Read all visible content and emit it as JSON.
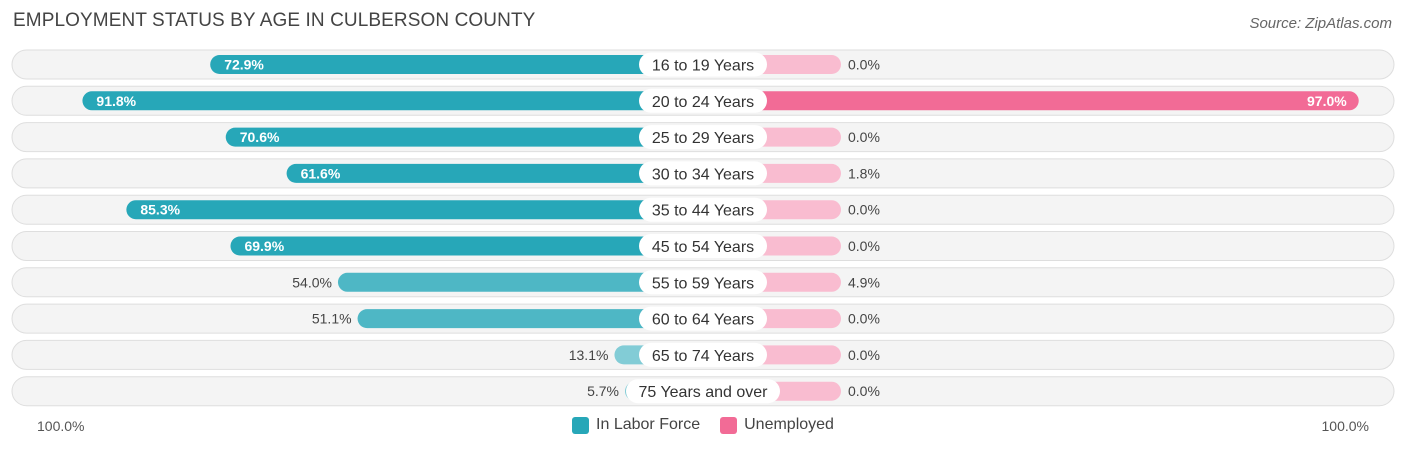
{
  "title": "EMPLOYMENT STATUS BY AGE IN CULBERSON COUNTY",
  "source": "Source: ZipAtlas.com",
  "axis": {
    "left_label": "100.0%",
    "right_label": "100.0%"
  },
  "legend": [
    {
      "label": "In Labor Force",
      "color": "#27a7b8"
    },
    {
      "label": "Unemployed",
      "color": "#f26b96"
    }
  ],
  "chart_data": {
    "type": "bar",
    "orientation": "horizontal-diverging",
    "title": "EMPLOYMENT STATUS BY AGE IN CULBERSON COUNTY",
    "categories": [
      "16 to 19 Years",
      "20 to 24 Years",
      "25 to 29 Years",
      "30 to 34 Years",
      "35 to 44 Years",
      "45 to 54 Years",
      "55 to 59 Years",
      "60 to 64 Years",
      "65 to 74 Years",
      "75 Years and over"
    ],
    "xlim": [
      0,
      100
    ],
    "series": [
      {
        "name": "In Labor Force",
        "side": "left",
        "values": [
          72.9,
          91.8,
          70.6,
          61.6,
          85.3,
          69.9,
          54.0,
          51.1,
          13.1,
          5.7
        ],
        "labels": [
          "72.9%",
          "91.8%",
          "70.6%",
          "61.6%",
          "85.3%",
          "69.9%",
          "54.0%",
          "51.1%",
          "13.1%",
          "5.7%"
        ]
      },
      {
        "name": "Unemployed",
        "side": "right",
        "values": [
          0.0,
          97.0,
          0.0,
          1.8,
          0.0,
          0.0,
          4.9,
          0.0,
          0.0,
          0.0
        ],
        "labels": [
          "0.0%",
          "97.0%",
          "0.0%",
          "1.8%",
          "0.0%",
          "0.0%",
          "4.9%",
          "0.0%",
          "0.0%",
          "0.0%"
        ]
      }
    ]
  }
}
